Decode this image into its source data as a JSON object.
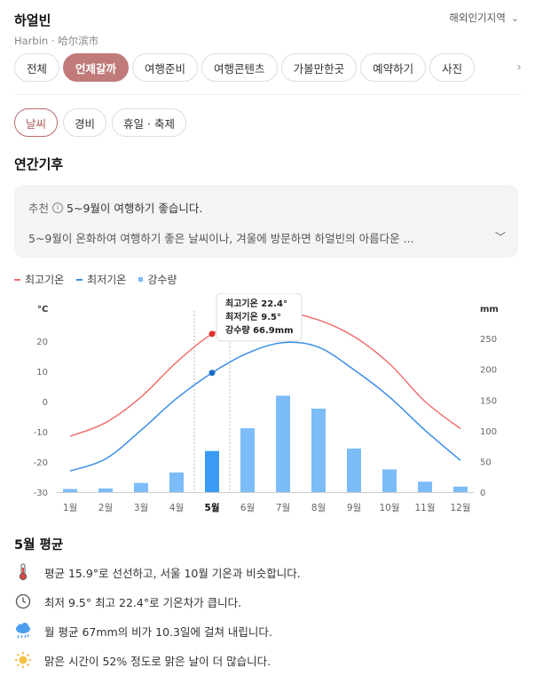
{
  "header": {
    "city": "하얼빈",
    "city_sub": "Harbin · 哈尔滨市",
    "region_link": "해외인기지역"
  },
  "tabs": [
    "전체",
    "언제갈까",
    "여행준비",
    "여행콘텐츠",
    "가볼만한곳",
    "예약하기",
    "사진"
  ],
  "active_tab": 1,
  "subtabs": [
    "날씨",
    "경비",
    "휴일 · 축제"
  ],
  "active_subtab": 0,
  "section_title": "연간기후",
  "recommend": {
    "label": "추천",
    "info_glyph": "i",
    "headline": "5~9월이 여행하기 좋습니다.",
    "body": "5~9월이 온화하여 여행하기 좋은 날씨이나, 겨울에 방문하면 하얼빈의 아름다운 ..."
  },
  "legend": {
    "high": "최고기온",
    "low": "최저기온",
    "rain": "강수량"
  },
  "colors": {
    "accent": "#c07a7a",
    "high": "#f07070",
    "low": "#3a8ee6",
    "rain_bar": "#7cbcf8",
    "rain_bar_selected": "#3a9af5"
  },
  "chart_data": {
    "type": "line+bar",
    "categories": [
      "1월",
      "2월",
      "3월",
      "4월",
      "5월",
      "6월",
      "7월",
      "8월",
      "9월",
      "10월",
      "11월",
      "12월"
    ],
    "selected_index": 4,
    "series": [
      {
        "name": "최고기온",
        "type": "line",
        "axis": "left",
        "values": [
          -11.5,
          -7,
          1.5,
          13,
          22.4,
          27.5,
          29.5,
          27,
          21.5,
          12.5,
          0,
          -9
        ]
      },
      {
        "name": "최저기온",
        "type": "line",
        "axis": "left",
        "values": [
          -23,
          -19,
          -9.5,
          1,
          9.5,
          16,
          19.5,
          18,
          10.5,
          1.5,
          -9.5,
          -19.5
        ]
      },
      {
        "name": "강수량",
        "type": "bar",
        "axis": "right",
        "values": [
          5,
          6,
          15,
          32,
          66.9,
          104,
          157,
          136,
          71,
          37,
          17,
          9
        ]
      }
    ],
    "y_left": {
      "label": "°C",
      "ticks": [
        20,
        10,
        0,
        -10,
        -20,
        -30
      ],
      "range": [
        -30,
        30
      ]
    },
    "y_right": {
      "label": "mm",
      "ticks": [
        250,
        200,
        150,
        100,
        50,
        0
      ],
      "range": [
        0,
        295
      ]
    },
    "tooltip": [
      "최고기온 22.4°",
      "최저기온 9.5°",
      "강수량 66.9mm"
    ]
  },
  "month_summary": {
    "title": "5월 평균",
    "facts": [
      {
        "icon": "thermometer-icon",
        "text": "평균 15.9°로 선선하고, 서울 10월 기온과 비슷합니다."
      },
      {
        "icon": "clock-icon",
        "text": "최저 9.5° 최고 22.4°로 기온차가 큽니다."
      },
      {
        "icon": "rain-cloud-icon",
        "text": "월 평균 67mm의 비가 10.3일에 걸쳐 내립니다."
      },
      {
        "icon": "sun-icon",
        "text": "맑은 시간이 52% 정도로 맑은 날이 더 많습니다."
      }
    ]
  }
}
